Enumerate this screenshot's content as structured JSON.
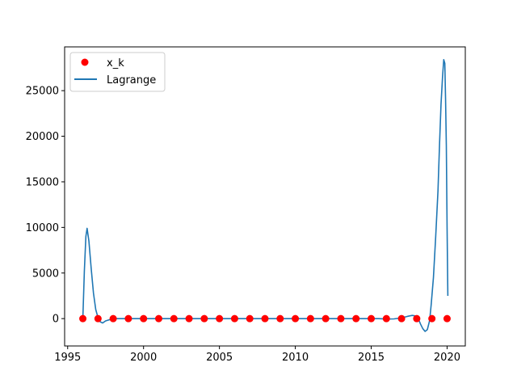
{
  "chart_data": {
    "type": "scatter",
    "title": "",
    "xlabel": "",
    "ylabel": "",
    "xlim": [
      1994.8,
      2021.2
    ],
    "ylim": [
      -3000,
      29800
    ],
    "x_ticks": [
      1995,
      2000,
      2005,
      2010,
      2015,
      2020
    ],
    "y_ticks": [
      0,
      5000,
      10000,
      15000,
      20000,
      25000
    ],
    "grid": false,
    "legend_position": "upper left",
    "series": [
      {
        "name": "x_k",
        "kind": "scatter",
        "color": "#ff0000",
        "x": [
          1996,
          1997,
          1998,
          1999,
          2000,
          2001,
          2002,
          2003,
          2004,
          2005,
          2006,
          2007,
          2008,
          2009,
          2010,
          2011,
          2012,
          2013,
          2014,
          2015,
          2016,
          2017,
          2018,
          2019,
          2020
        ],
        "y": [
          0,
          0,
          0,
          0,
          0,
          0,
          0,
          0,
          0,
          0,
          0,
          0,
          0,
          0,
          0,
          0,
          0,
          0,
          0,
          0,
          0,
          0,
          0,
          0,
          0
        ]
      },
      {
        "name": "Lagrange",
        "kind": "line",
        "color": "#1f77b4",
        "x": [
          1996.0,
          1996.1,
          1996.2,
          1996.28,
          1996.4,
          1996.55,
          1996.7,
          1996.85,
          1997.0,
          1997.15,
          1997.3,
          1997.5,
          1998.0,
          2000,
          2005,
          2010,
          2014,
          2015.5,
          2016,
          2016.5,
          2017,
          2017.4,
          2017.7,
          2017.9,
          2018.1,
          2018.25,
          2018.4,
          2018.55,
          2018.7,
          2018.85,
          2018.95,
          2019.1,
          2019.25,
          2019.4,
          2019.5,
          2019.6,
          2019.7,
          2019.78,
          2019.85,
          2019.9,
          2019.95,
          2020.0,
          2020.05
        ],
        "y": [
          0,
          5200,
          9000,
          9900,
          8500,
          5500,
          2800,
          1000,
          100,
          -350,
          -480,
          -250,
          0,
          0,
          0,
          0,
          0,
          0,
          -50,
          -30,
          80,
          250,
          350,
          300,
          0,
          -600,
          -1100,
          -1400,
          -1200,
          -200,
          1500,
          4500,
          9000,
          14000,
          19000,
          23500,
          26500,
          28400,
          28000,
          24000,
          19000,
          10000,
          2500
        ]
      }
    ]
  }
}
